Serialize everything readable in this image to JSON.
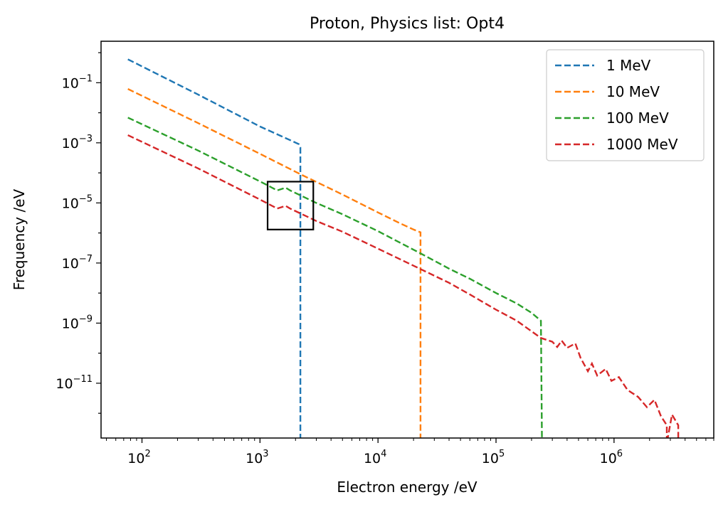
{
  "chart_data": {
    "type": "line",
    "title": "Proton, Physics list: Opt4",
    "xlabel": "Electron energy /eV",
    "ylabel": "Frequency /eV",
    "xscale": "log",
    "yscale": "log",
    "xlim": [
      45,
      7000000
    ],
    "ylim": [
      1.5e-13,
      2.4
    ],
    "grid": false,
    "legend": "top-right",
    "x_ticks": [
      {
        "value": 100,
        "base": "10",
        "exp": "2"
      },
      {
        "value": 1000,
        "base": "10",
        "exp": "3"
      },
      {
        "value": 10000,
        "base": "10",
        "exp": "4"
      },
      {
        "value": 100000,
        "base": "10",
        "exp": "5"
      },
      {
        "value": 1000000,
        "base": "10",
        "exp": "6"
      }
    ],
    "y_ticks": [
      {
        "value": 0.1,
        "base": "10",
        "exp": "−1"
      },
      {
        "value": 0.001,
        "base": "10",
        "exp": "−3"
      },
      {
        "value": 1e-05,
        "base": "10",
        "exp": "−5"
      },
      {
        "value": 1e-07,
        "base": "10",
        "exp": "−7"
      },
      {
        "value": 1e-09,
        "base": "10",
        "exp": "−9"
      },
      {
        "value": 1e-11,
        "base": "10",
        "exp": "−11"
      }
    ],
    "series": [
      {
        "name": "1 MeV",
        "color": "#1f77b4",
        "style": "dashed",
        "points": [
          [
            76,
            0.6
          ],
          [
            300,
            0.04
          ],
          [
            1000,
            0.0035
          ],
          [
            1500,
            0.0017
          ],
          [
            2130,
            0.00091
          ],
          [
            2200,
            0.0007
          ],
          [
            2200,
            1e-13
          ]
        ]
      },
      {
        "name": "10 MeV",
        "color": "#ff7f0e",
        "style": "dashed",
        "points": [
          [
            76,
            0.062
          ],
          [
            300,
            0.0045
          ],
          [
            1000,
            0.00043
          ],
          [
            2200,
            9e-05
          ],
          [
            3000,
            5e-05
          ],
          [
            5000,
            1.9e-05
          ],
          [
            10000,
            4.8e-06
          ],
          [
            15000,
            2.2e-06
          ],
          [
            20000,
            1.3e-06
          ],
          [
            22900,
            1.05e-06
          ],
          [
            22900,
            1e-13
          ]
        ]
      },
      {
        "name": "100 MeV",
        "color": "#2ca02c",
        "style": "dashed",
        "points": [
          [
            76,
            0.0069
          ],
          [
            300,
            0.00055
          ],
          [
            1000,
            5.2e-05
          ],
          [
            1400,
            2.6e-05
          ],
          [
            1650,
            3.2e-05
          ],
          [
            1800,
            2.6e-05
          ],
          [
            3000,
            1e-05
          ],
          [
            5000,
            4.2e-06
          ],
          [
            10000,
            1.15e-06
          ],
          [
            22900,
            2.1e-07
          ],
          [
            40000,
            6.5e-08
          ],
          [
            60000,
            3e-08
          ],
          [
            100000,
            1e-08
          ],
          [
            150000,
            4.5e-09
          ],
          [
            200000,
            2.2e-09
          ],
          [
            240000,
            1.2e-09
          ],
          [
            245000,
            1e-13
          ]
        ]
      },
      {
        "name": "1000 MeV",
        "color": "#d62728",
        "style": "dashed",
        "points": [
          [
            76,
            0.0018
          ],
          [
            300,
            0.00014
          ],
          [
            1000,
            1.3e-05
          ],
          [
            1400,
            6.5e-06
          ],
          [
            1650,
            8e-06
          ],
          [
            1800,
            6.5e-06
          ],
          [
            3000,
            2.5e-06
          ],
          [
            5000,
            1.1e-06
          ],
          [
            10000,
            3e-07
          ],
          [
            22900,
            6.3e-08
          ],
          [
            40000,
            2.2e-08
          ],
          [
            60000,
            9e-09
          ],
          [
            100000,
            2.8e-09
          ],
          [
            150000,
            1.2e-09
          ],
          [
            240000,
            3.2e-10
          ],
          [
            300000,
            2.4e-10
          ],
          [
            330000,
            1.6e-10
          ],
          [
            360000,
            2.6e-10
          ],
          [
            400000,
            1.5e-10
          ],
          [
            470000,
            2.1e-10
          ],
          [
            520000,
            7e-11
          ],
          [
            600000,
            2.5e-11
          ],
          [
            650000,
            4.5e-11
          ],
          [
            720000,
            1.8e-11
          ],
          [
            850000,
            3e-11
          ],
          [
            950000,
            1.2e-11
          ],
          [
            1100000,
            1.6e-11
          ],
          [
            1300000,
            6e-12
          ],
          [
            1600000,
            3.5e-12
          ],
          [
            1900000,
            1.6e-12
          ],
          [
            2200000,
            2.8e-12
          ],
          [
            2500000,
            8e-13
          ],
          [
            2800000,
            4e-13
          ],
          [
            2800000,
            1e-13
          ],
          [
            3100000,
            9e-13
          ],
          [
            3500000,
            4e-13
          ],
          [
            3500000,
            1e-13
          ]
        ]
      }
    ],
    "annotations": [
      {
        "type": "rectangle",
        "x": [
          1160,
          2830
        ],
        "y": [
          5.1e-05,
          1.3e-06
        ],
        "color": "#000000"
      }
    ]
  }
}
